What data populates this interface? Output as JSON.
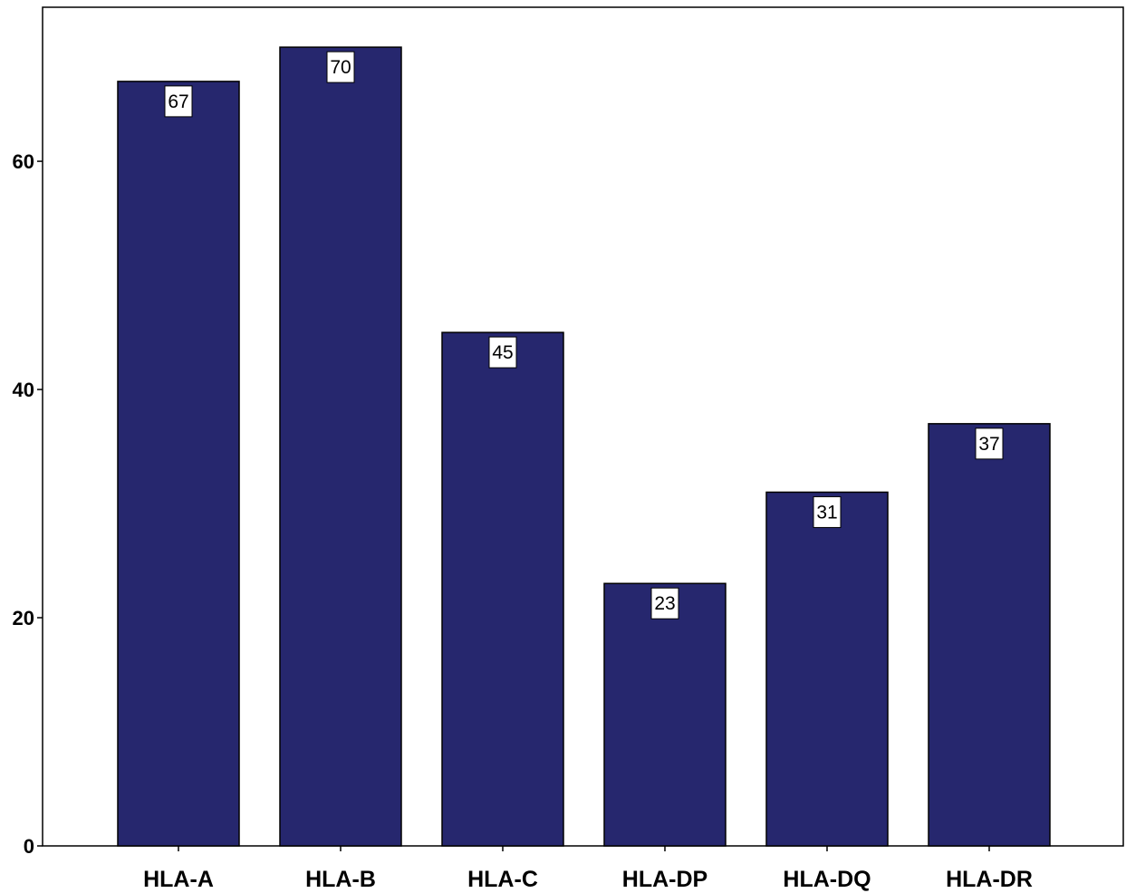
{
  "chart_data": {
    "type": "bar",
    "title": "",
    "xlabel": "",
    "ylabel": "",
    "categories": [
      "HLA-A",
      "HLA-B",
      "HLA-C",
      "HLA-DP",
      "HLA-DQ",
      "HLA-DR"
    ],
    "values": [
      67,
      70,
      45,
      23,
      31,
      37
    ],
    "data_labels": [
      "67",
      "70",
      "45",
      "23",
      "31",
      "37"
    ],
    "ylim": [
      0,
      73.5
    ],
    "yticks": [
      0,
      20,
      40,
      60
    ],
    "ytick_labels": [
      "0",
      "20",
      "40",
      "60"
    ],
    "grid": false,
    "legend": "none",
    "bar_color": "#26276e",
    "bar_edge_color": "#000000"
  }
}
